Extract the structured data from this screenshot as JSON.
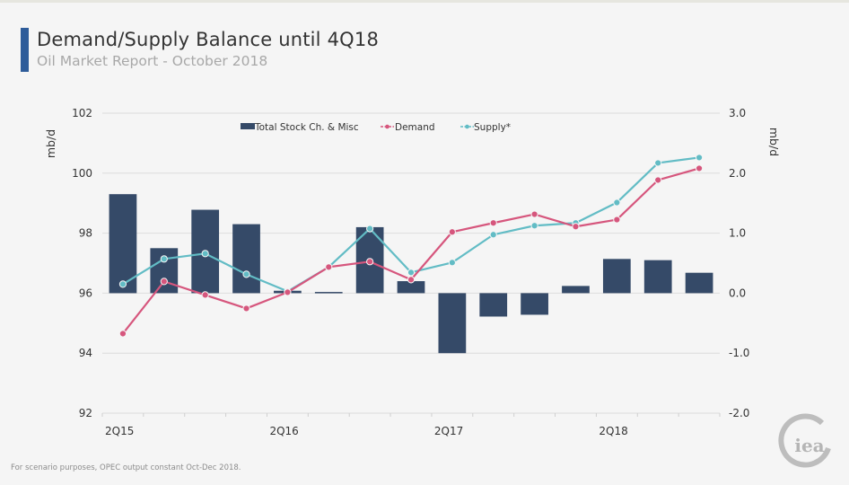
{
  "header": {
    "title": "Demand/Supply Balance until 4Q18",
    "subtitle": "Oil Market Report - October 2018",
    "accent_color": "#2e5c9a"
  },
  "footnote": "For scenario purposes, OPEC output constant Oct-Dec 2018.",
  "logo": {
    "text": "iea",
    "icon": "iea-logo-icon"
  },
  "chart_data": {
    "type": "bar+line",
    "title": "Demand/Supply Balance until 4Q18",
    "categories": [
      "2Q15",
      "3Q15",
      "4Q15",
      "1Q16",
      "2Q16",
      "3Q16",
      "4Q16",
      "1Q17",
      "2Q17",
      "3Q17",
      "4Q17",
      "1Q18",
      "2Q18",
      "3Q18",
      "4Q18"
    ],
    "x_tick_labels": [
      {
        "index": 0,
        "label": "2Q15"
      },
      {
        "index": 4,
        "label": "2Q16"
      },
      {
        "index": 8,
        "label": "2Q17"
      },
      {
        "index": 12,
        "label": "2Q18"
      }
    ],
    "left_axis": {
      "label": "mb/d",
      "ylim": [
        92,
        102
      ],
      "ticks": [
        "92",
        "94",
        "96",
        "98",
        "100",
        "102"
      ],
      "tick_values": [
        92,
        94,
        96,
        98,
        100,
        102
      ]
    },
    "right_axis": {
      "label": "mb/d",
      "ylim": [
        -2.0,
        3.0
      ],
      "ticks": [
        "-2.0",
        "-1.0",
        "0.0",
        "1.0",
        "2.0",
        "3.0"
      ],
      "tick_values": [
        -2,
        -1,
        0,
        1,
        2,
        3
      ]
    },
    "grid": true,
    "legend_position": "top-center",
    "series": [
      {
        "name": "Total Stock Ch. & Misc",
        "type": "bar",
        "axis": "right",
        "color": "#354a68",
        "values": [
          1.65,
          0.75,
          1.39,
          1.15,
          0.04,
          0.02,
          1.1,
          0.2,
          -1.0,
          -0.39,
          -0.36,
          0.12,
          0.57,
          0.55,
          0.34
        ]
      },
      {
        "name": "Demand",
        "type": "line",
        "axis": "left",
        "color": "#d6567d",
        "values": [
          94.65,
          96.39,
          95.94,
          95.49,
          96.03,
          96.87,
          97.05,
          96.45,
          98.04,
          98.34,
          98.63,
          98.22,
          98.45,
          99.77,
          100.16
        ]
      },
      {
        "name": "Supply*",
        "type": "line",
        "axis": "left",
        "color": "#62bcc5",
        "values": [
          96.3,
          97.14,
          97.32,
          96.63,
          96.06,
          96.87,
          98.15,
          96.69,
          97.02,
          97.95,
          98.25,
          98.34,
          99.02,
          100.34,
          100.52
        ]
      }
    ]
  }
}
